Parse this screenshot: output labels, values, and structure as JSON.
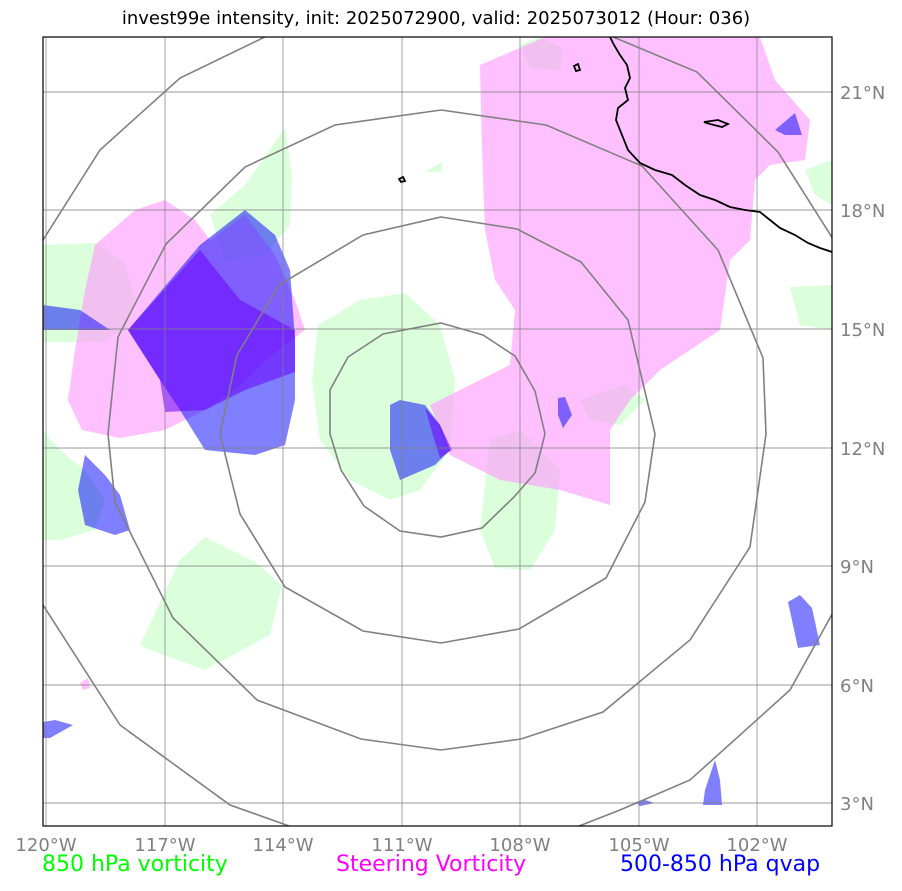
{
  "title": "invest99e intensity, init: 2025072900, valid: 2025073012 (Hour: 036)",
  "axes": {
    "lon_labels": [
      "120°W",
      "117°W",
      "114°W",
      "111°W",
      "108°W",
      "105°W",
      "102°W"
    ],
    "lat_labels": [
      "21°N",
      "18°N",
      "15°N",
      "12°N",
      "9°N",
      "6°N",
      "3°N"
    ]
  },
  "legend": {
    "vort850": "850 hPa vorticity",
    "steering": "Steering Vorticity",
    "qvap": "500-850 hPa qvap"
  },
  "colors": {
    "vort850": "#ccffcc",
    "steering": "#ff99ff",
    "qvap": "#0000ff",
    "grid": "#808080",
    "coast": "#000000"
  }
}
